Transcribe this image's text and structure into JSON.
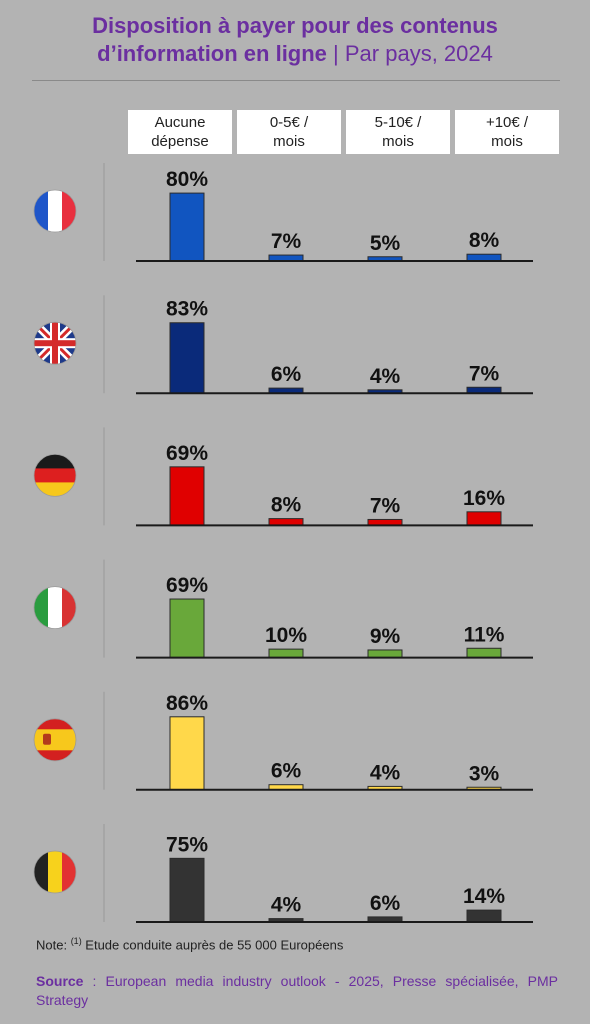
{
  "title": {
    "line1": "Disposition à payer pour des contenus",
    "line2_bold": "d’information en ligne",
    "line2_sep": " | ",
    "line2_rest": "Par pays, 2024"
  },
  "note": {
    "prefix": "Note: ",
    "sup": "(1)",
    "text": " Etude conduite auprès de 55 000 Européens"
  },
  "source": {
    "label": "Source",
    "text": " : European media industry outlook - 2025, Presse spécialisée, PMP Strategy"
  },
  "chart_data": {
    "type": "bar",
    "unit": "%",
    "ylim": [
      0,
      100
    ],
    "grid": false,
    "categories": [
      "Aucune dépense",
      "0-5€ / mois",
      "5-10€ / mois",
      "+10€ / mois"
    ],
    "category_lines": [
      [
        "Aucune",
        "dépense"
      ],
      [
        "0-5€ /",
        "mois"
      ],
      [
        "5-10€ /",
        "mois"
      ],
      [
        "+10€ /",
        "mois"
      ]
    ],
    "series": [
      {
        "flag": "france-flag-icon",
        "color": "#1155c0",
        "values": [
          80,
          7,
          5,
          8
        ]
      },
      {
        "flag": "uk-flag-icon",
        "color": "#0a2a7a",
        "values": [
          83,
          6,
          4,
          7
        ]
      },
      {
        "flag": "germany-flag-icon",
        "color": "#e00000",
        "values": [
          69,
          8,
          7,
          16
        ]
      },
      {
        "flag": "italy-flag-icon",
        "color": "#69a83a",
        "values": [
          69,
          10,
          9,
          11
        ]
      },
      {
        "flag": "spain-flag-icon",
        "color": "#ffd84a",
        "values": [
          86,
          6,
          4,
          3
        ]
      },
      {
        "flag": "belgium-flag-icon",
        "color": "#333333",
        "values": [
          75,
          4,
          6,
          14
        ]
      }
    ]
  }
}
